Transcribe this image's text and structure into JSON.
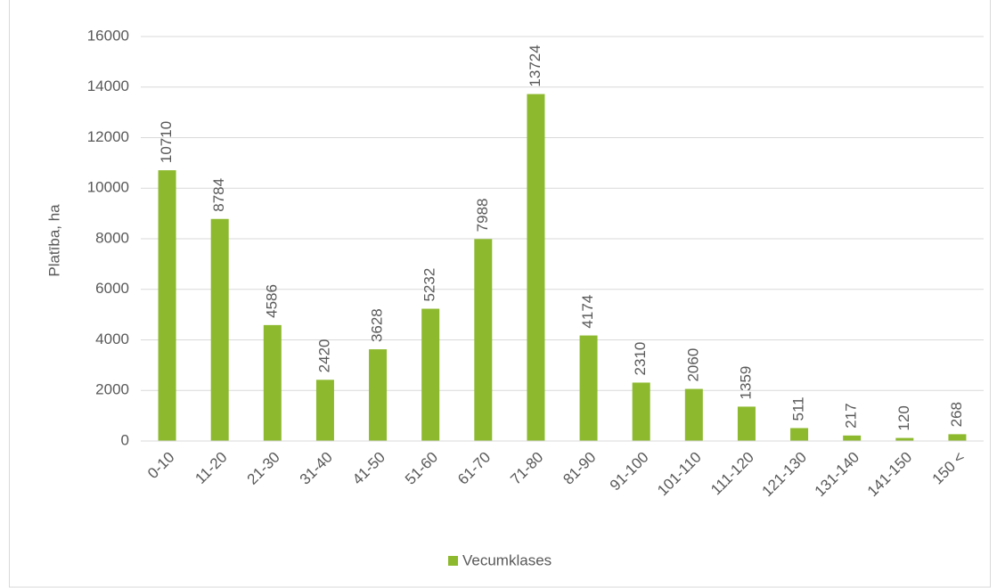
{
  "chart_data": {
    "type": "bar",
    "y_label": "Platība, ha",
    "categories": [
      "0-10",
      "11-20",
      "21-30",
      "31-40",
      "41-50",
      "51-60",
      "61-70",
      "71-80",
      "81-90",
      "91-100",
      "101-110",
      "111-120",
      "121-130",
      "131-140",
      "141-150",
      "150 <"
    ],
    "series": [
      {
        "name": "Vecumklases",
        "color": "#8db92e",
        "values": [
          10710,
          8784,
          4586,
          2420,
          3628,
          5232,
          7988,
          13724,
          4174,
          2310,
          2060,
          1359,
          511,
          217,
          120,
          268
        ]
      }
    ],
    "ylim": [
      0,
      16000
    ],
    "yticks": [
      0,
      2000,
      4000,
      6000,
      8000,
      10000,
      12000,
      14000,
      16000
    ],
    "grid": true,
    "legend": "bottom"
  }
}
